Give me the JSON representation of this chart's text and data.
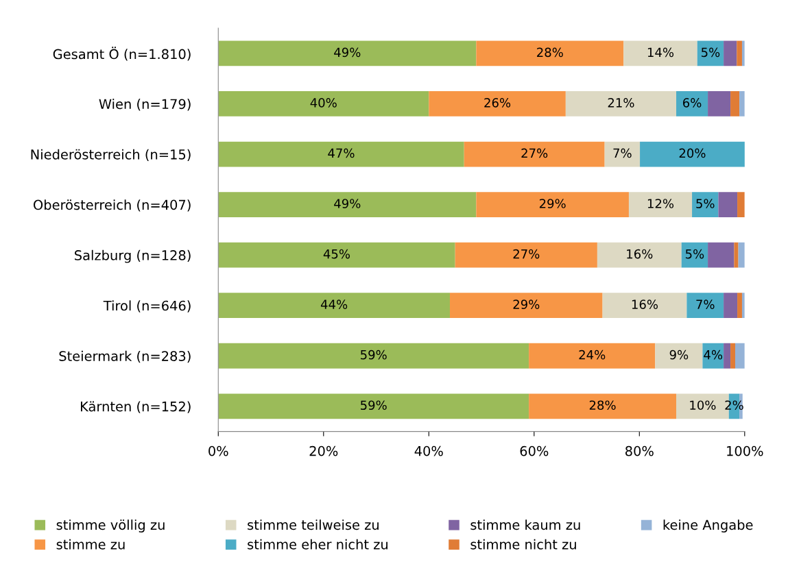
{
  "chart_data": {
    "type": "bar",
    "orientation": "horizontal",
    "stacked": true,
    "categories": [
      "Gesamt Ö (n=1.810)",
      "Wien (n=179)",
      "Niederösterreich (n=15)",
      "Oberösterreich (n=407)",
      "Salzburg (n=128)",
      "Tirol (n=646)",
      "Steiermark (n=283)",
      "Kärnten (n=152)"
    ],
    "series": [
      {
        "name": "stimme völlig zu",
        "color": "#9bbb59",
        "values": [
          49,
          40,
          46.7,
          49,
          45,
          44,
          59,
          59
        ],
        "value_labels": [
          "49%",
          "40%",
          "47%",
          "49%",
          "45%",
          "44%",
          "59%",
          "59%"
        ]
      },
      {
        "name": "stimme zu",
        "color": "#f79646",
        "values": [
          28,
          26,
          26.7,
          29,
          27,
          29,
          24,
          28
        ],
        "value_labels": [
          "28%",
          "26%",
          "27%",
          "29%",
          "27%",
          "29%",
          "24%",
          "28%"
        ]
      },
      {
        "name": "stimme teilweise zu",
        "color": "#ddd9c3",
        "values": [
          14,
          21,
          6.7,
          12,
          16,
          16,
          9,
          10
        ],
        "value_labels": [
          "14%",
          "21%",
          "7%",
          "12%",
          "16%",
          "16%",
          "9%",
          "10%"
        ]
      },
      {
        "name": "stimme eher nicht zu",
        "color": "#4bacc6",
        "values": [
          5,
          6,
          20,
          5,
          5,
          7,
          4,
          2
        ],
        "value_labels": [
          "5%",
          "6%",
          "20%",
          "5%",
          "5%",
          "7%",
          "4%",
          "2%"
        ]
      },
      {
        "name": "stimme kaum zu",
        "color": "#8064a2",
        "values": [
          2.5,
          4.3,
          0,
          3.6,
          5,
          2.6,
          1.3,
          0
        ]
      },
      {
        "name": "stimme nicht zu",
        "color": "#e07c36",
        "values": [
          1,
          1.7,
          0,
          1.4,
          0.8,
          0.9,
          0.9,
          0
        ]
      },
      {
        "name": "keine Angabe",
        "color": "#95b3d7",
        "values": [
          0.5,
          1,
          0,
          0,
          1.2,
          0.5,
          1.8,
          0.6
        ]
      }
    ],
    "xlim": [
      0,
      100
    ],
    "xticks": [
      {
        "value": 0,
        "label": "0%"
      },
      {
        "value": 20,
        "label": "20%"
      },
      {
        "value": 40,
        "label": "40%"
      },
      {
        "value": 60,
        "label": "60%"
      },
      {
        "value": 80,
        "label": "80%"
      },
      {
        "value": 100,
        "label": "100%"
      }
    ],
    "grid": false,
    "legend": "bottom"
  }
}
